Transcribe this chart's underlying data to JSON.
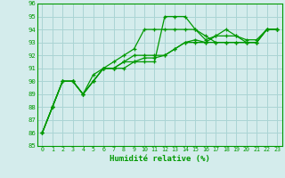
{
  "xlabel": "Humidité relative (%)",
  "background_color": "#d4ecec",
  "grid_color": "#aad4d4",
  "line_color": "#009900",
  "spine_color": "#009900",
  "tick_color": "#009900",
  "xlim": [
    -0.5,
    23.5
  ],
  "ylim": [
    85,
    96
  ],
  "yticks": [
    85,
    86,
    87,
    88,
    89,
    90,
    91,
    92,
    93,
    94,
    95,
    96
  ],
  "xticks": [
    0,
    1,
    2,
    3,
    4,
    5,
    6,
    7,
    8,
    9,
    10,
    11,
    12,
    13,
    14,
    15,
    16,
    17,
    18,
    19,
    20,
    21,
    22,
    23
  ],
  "series": [
    [
      86,
      88,
      90,
      90,
      89,
      90,
      91,
      91,
      91.5,
      91.5,
      91.5,
      91.5,
      95,
      95,
      95,
      94,
      93.5,
      93,
      93,
      93,
      93,
      93,
      94,
      94
    ],
    [
      86,
      88,
      90,
      90,
      89,
      90,
      91,
      91.5,
      92,
      92.5,
      94,
      94,
      94,
      94,
      94,
      94,
      93.2,
      93.5,
      94,
      93.5,
      93,
      93,
      94,
      94
    ],
    [
      86,
      88,
      90,
      90,
      89,
      90.5,
      91,
      91,
      91.5,
      92,
      92,
      92,
      92,
      92.5,
      93,
      93.2,
      93,
      93.5,
      93.5,
      93.5,
      93.2,
      93.2,
      94,
      94
    ],
    [
      86,
      88,
      90,
      90,
      89,
      90,
      91,
      91,
      91,
      91.5,
      91.8,
      91.8,
      92,
      92.5,
      93,
      93,
      93,
      93,
      93,
      93,
      93,
      93,
      94,
      94
    ]
  ]
}
